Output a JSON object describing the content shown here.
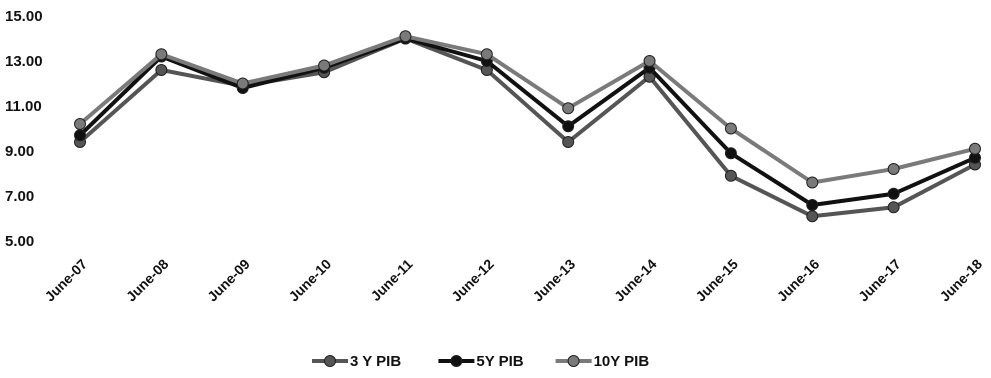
{
  "chart_data": {
    "type": "line",
    "title": "",
    "xlabel": "",
    "ylabel": "",
    "ylim": [
      5,
      15
    ],
    "yticks": [
      "5.00",
      "7.00",
      "9.00",
      "11.00",
      "13.00",
      "15.00"
    ],
    "categories": [
      "June-07",
      "June-08",
      "June-09",
      "June-10",
      "June-11",
      "June-12",
      "June-13",
      "June-14",
      "June-15",
      "June-16",
      "June-17",
      "June-18"
    ],
    "series": [
      {
        "name": "3 Y PIB",
        "color": "#555555",
        "values": [
          9.4,
          12.6,
          11.9,
          12.5,
          14.0,
          12.6,
          9.4,
          12.3,
          7.9,
          6.1,
          6.5,
          8.4
        ]
      },
      {
        "name": "5Y PIB",
        "color": "#111111",
        "values": [
          9.7,
          13.2,
          11.8,
          12.7,
          14.0,
          13.0,
          10.1,
          12.7,
          8.9,
          6.6,
          7.1,
          8.7
        ]
      },
      {
        "name": "10Y PIB",
        "color": "#7a7a7a",
        "values": [
          10.2,
          13.3,
          12.0,
          12.8,
          14.1,
          13.3,
          10.9,
          13.0,
          10.0,
          7.6,
          8.2,
          9.1
        ]
      }
    ],
    "grid": false,
    "legend": "bottom"
  }
}
